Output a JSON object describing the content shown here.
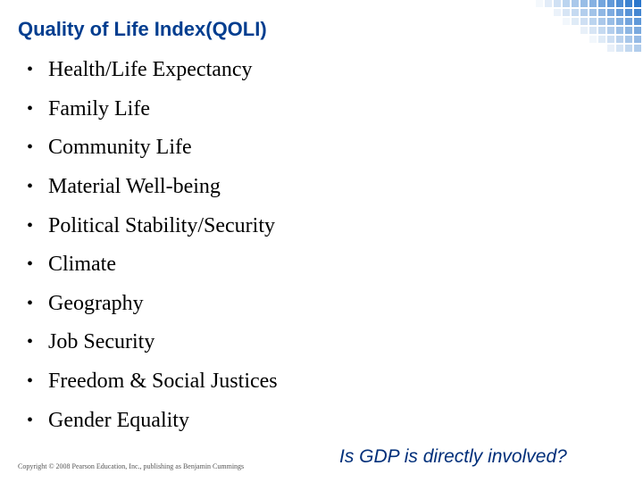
{
  "slide": {
    "title": "Quality of Life Index(QOLI)",
    "bullets": [
      "Health/Life Expectancy",
      "Family Life",
      "Community Life",
      "Material Well-being",
      "Political Stability/Security",
      "Climate",
      "Geography",
      "Job Security",
      "Freedom & Social Justices",
      "Gender Equality"
    ],
    "bullet_symbol": "•",
    "copyright": "Copyright © 2008 Pearson Education, Inc., publishing as Benjamin Cummings",
    "question": "Is GDP is directly involved?"
  },
  "colors": {
    "title": "#003d8f",
    "question": "#002f7a",
    "corner_grid": "#1f6fc9"
  }
}
